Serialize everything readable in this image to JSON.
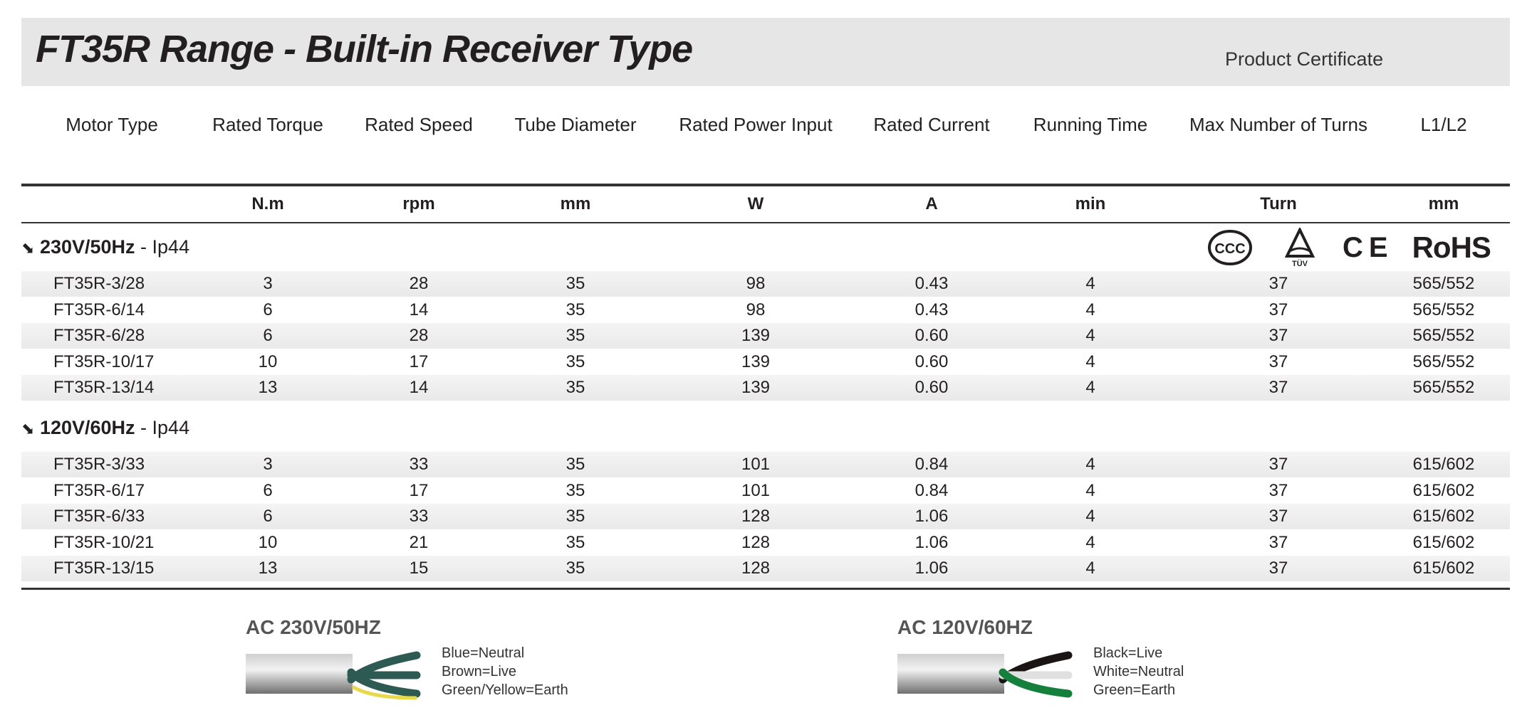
{
  "title": "FT35R Range - Built-in Receiver Type",
  "product_certificate": "Product Certificate",
  "columns": [
    "Motor Type",
    "Rated Torque",
    "Rated Speed",
    "Tube Diameter",
    "Rated Power Input",
    "Rated Current",
    "Running Time",
    "Max Number of Turns",
    "L1/L2"
  ],
  "units": [
    "",
    "N.m",
    "rpm",
    "mm",
    "W",
    "A",
    "min",
    "Turn",
    "mm"
  ],
  "certificates": [
    "CCC",
    "TÜV",
    "CE",
    "RoHS"
  ],
  "sections": [
    {
      "voltage": "230V/50Hz",
      "rating": " - Ip44",
      "rows": [
        [
          "FT35R-3/28",
          "3",
          "28",
          "35",
          "98",
          "0.43",
          "4",
          "37",
          "565/552"
        ],
        [
          "FT35R-6/14",
          "6",
          "14",
          "35",
          "98",
          "0.43",
          "4",
          "37",
          "565/552"
        ],
        [
          "FT35R-6/28",
          "6",
          "28",
          "35",
          "139",
          "0.60",
          "4",
          "37",
          "565/552"
        ],
        [
          "FT35R-10/17",
          "10",
          "17",
          "35",
          "139",
          "0.60",
          "4",
          "37",
          "565/552"
        ],
        [
          "FT35R-13/14",
          "13",
          "14",
          "35",
          "139",
          "0.60",
          "4",
          "37",
          "565/552"
        ]
      ]
    },
    {
      "voltage": "120V/60Hz",
      "rating": " - Ip44",
      "rows": [
        [
          "FT35R-3/33",
          "3",
          "33",
          "35",
          "101",
          "0.84",
          "4",
          "37",
          "615/602"
        ],
        [
          "FT35R-6/17",
          "6",
          "17",
          "35",
          "101",
          "0.84",
          "4",
          "37",
          "615/602"
        ],
        [
          "FT35R-6/33",
          "6",
          "33",
          "35",
          "128",
          "1.06",
          "4",
          "37",
          "615/602"
        ],
        [
          "FT35R-10/21",
          "10",
          "21",
          "35",
          "128",
          "1.06",
          "4",
          "37",
          "615/602"
        ],
        [
          "FT35R-13/15",
          "13",
          "15",
          "35",
          "128",
          "1.06",
          "4",
          "37",
          "615/602"
        ]
      ]
    }
  ],
  "wiring": [
    {
      "title": "AC 230V/50HZ",
      "labels": [
        "Blue=Neutral",
        "Brown=Live",
        "Green/Yellow=Earth"
      ],
      "wire_colors": [
        "#2d5a52",
        "#2d5a52",
        "#2d5a52"
      ]
    },
    {
      "title": "AC 120V/60HZ",
      "labels": [
        "Black=Live",
        "White=Neutral",
        "Green=Earth"
      ],
      "wire_colors": [
        "#1a1514",
        "#e0e0e0",
        "#14803c"
      ]
    }
  ]
}
